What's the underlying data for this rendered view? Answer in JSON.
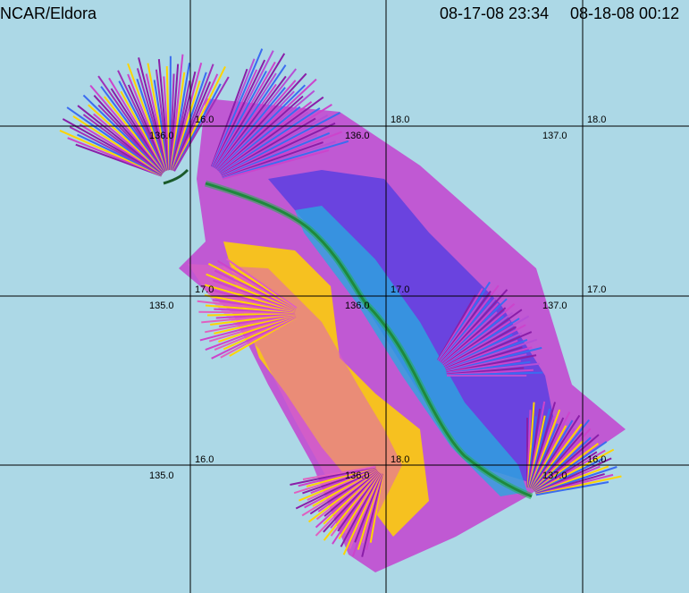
{
  "header": {
    "source": "NCAR/Eldora",
    "start_time": "08-17-08 23:34",
    "end_time": "08-18-08 00:12"
  },
  "grid": {
    "lat_labels_row_top": [
      "16.0",
      "18.0",
      "18.0"
    ],
    "lon_labels_row_top": [
      "136.0",
      "136.0",
      "137.0"
    ],
    "lat_labels_row_mid": [
      "17.0",
      "17.0",
      "17.0"
    ],
    "lon_labels_row_mid": [
      "135.0",
      "136.0",
      "137.0"
    ],
    "lat_labels_row_bot": [
      "16.0",
      "18.0",
      "16.0"
    ],
    "lon_labels_row_bot": [
      "135.0",
      "136.0",
      "137.0"
    ]
  },
  "colors": {
    "background": "#acd8e6",
    "gridline": "#000000",
    "reflectivity_high": "#ffe000",
    "reflectivity_mid": "#cc44cc",
    "reflectivity_low": "#8a1ea8",
    "near_track": "#2a6fe8",
    "flight_track": "#1a7a3a"
  }
}
